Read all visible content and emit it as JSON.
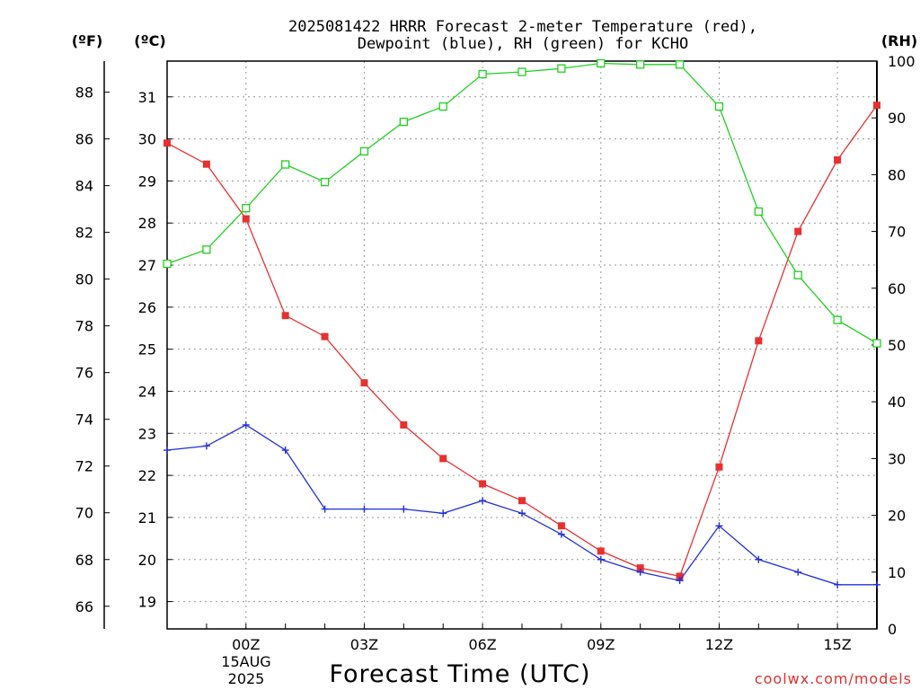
{
  "chart_data": {
    "type": "line",
    "title_line1": "2025081422 HRRR Forecast 2-meter Temperature (red),",
    "title_line2": "Dewpoint (blue), RH (green) for KCHO",
    "xlabel": "Forecast Time (UTC)",
    "unit_f": "(ºF)",
    "unit_c": "(ºC)",
    "unit_rh": "(RH)",
    "credit": "coolwx.com/models",
    "date_label_day": "15AUG",
    "date_label_year": "2025",
    "x": [
      "22Z",
      "23Z",
      "00Z",
      "01Z",
      "02Z",
      "03Z",
      "04Z",
      "05Z",
      "06Z",
      "07Z",
      "08Z",
      "09Z",
      "10Z",
      "11Z",
      "12Z",
      "13Z",
      "14Z",
      "15Z",
      "16Z"
    ],
    "x_tick_labels": [
      {
        "index": 2,
        "label": "00Z"
      },
      {
        "index": 5,
        "label": "03Z"
      },
      {
        "index": 8,
        "label": "06Z"
      },
      {
        "index": 11,
        "label": "09Z"
      },
      {
        "index": 14,
        "label": "12Z"
      },
      {
        "index": 17,
        "label": "15Z"
      }
    ],
    "celsius_ticks": [
      "19",
      "20",
      "21",
      "22",
      "23",
      "24",
      "25",
      "26",
      "27",
      "28",
      "29",
      "30",
      "31"
    ],
    "fahrenheit_ticks": [
      "66",
      "68",
      "70",
      "72",
      "74",
      "76",
      "78",
      "80",
      "82",
      "84",
      "86",
      "88"
    ],
    "rh_ticks": [
      "0",
      "10",
      "20",
      "30",
      "40",
      "50",
      "60",
      "70",
      "80",
      "90",
      "100"
    ],
    "ylim_celsius": [
      18.35,
      31.85
    ],
    "ylim_rh": [
      0,
      100
    ],
    "series": [
      {
        "name": "Temperature",
        "axis": "celsius",
        "color": "#e83030",
        "marker": "filled-square",
        "values": [
          29.9,
          29.4,
          28.1,
          25.8,
          25.3,
          24.2,
          23.2,
          22.4,
          21.8,
          21.4,
          20.8,
          20.2,
          19.8,
          19.6,
          22.2,
          25.2,
          27.8,
          29.5,
          30.8
        ]
      },
      {
        "name": "Dewpoint",
        "axis": "celsius",
        "color": "#2030e0",
        "marker": "plus",
        "values": [
          22.6,
          22.7,
          23.2,
          22.6,
          21.2,
          21.2,
          21.2,
          21.1,
          21.4,
          21.1,
          20.6,
          20.0,
          19.7,
          19.5,
          20.8,
          20.0,
          19.7,
          19.4,
          19.4
        ]
      },
      {
        "name": "RH",
        "axis": "rh",
        "color": "#20d020",
        "marker": "open-square",
        "values": [
          64.3,
          66.8,
          74.1,
          81.8,
          78.7,
          84.1,
          89.3,
          92.0,
          97.7,
          98.1,
          98.7,
          99.6,
          99.4,
          99.4,
          92.0,
          73.5,
          62.3,
          54.4,
          50.3
        ]
      }
    ]
  }
}
